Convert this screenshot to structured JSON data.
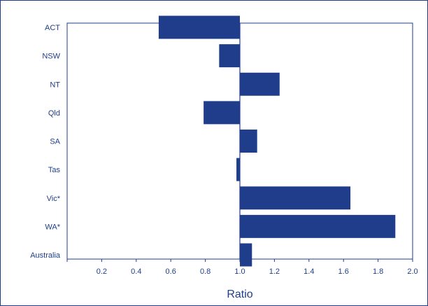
{
  "chart_data": {
    "type": "bar",
    "orientation": "horizontal",
    "categories": [
      "ACT",
      "NSW",
      "NT",
      "Qld",
      "SA",
      "Tas",
      "Vic*",
      "WA*",
      "Australia"
    ],
    "values": [
      0.53,
      0.88,
      1.23,
      0.79,
      1.1,
      0.98,
      1.64,
      1.9,
      1.07
    ],
    "baseline": 1.0,
    "xlabel": "Ratio",
    "xlim": [
      0.0,
      2.0
    ],
    "xticks": [
      0.2,
      0.4,
      0.6,
      0.8,
      1.0,
      1.2,
      1.4,
      1.6,
      1.8,
      2.0
    ],
    "xtick_labels": [
      "0.2",
      "0.4",
      "0.6",
      "0.8",
      "1.0",
      "1.2",
      "1.4",
      "1.6",
      "1.8",
      "2.0"
    ],
    "bar_color": "#1f3d8a",
    "grid": false
  }
}
